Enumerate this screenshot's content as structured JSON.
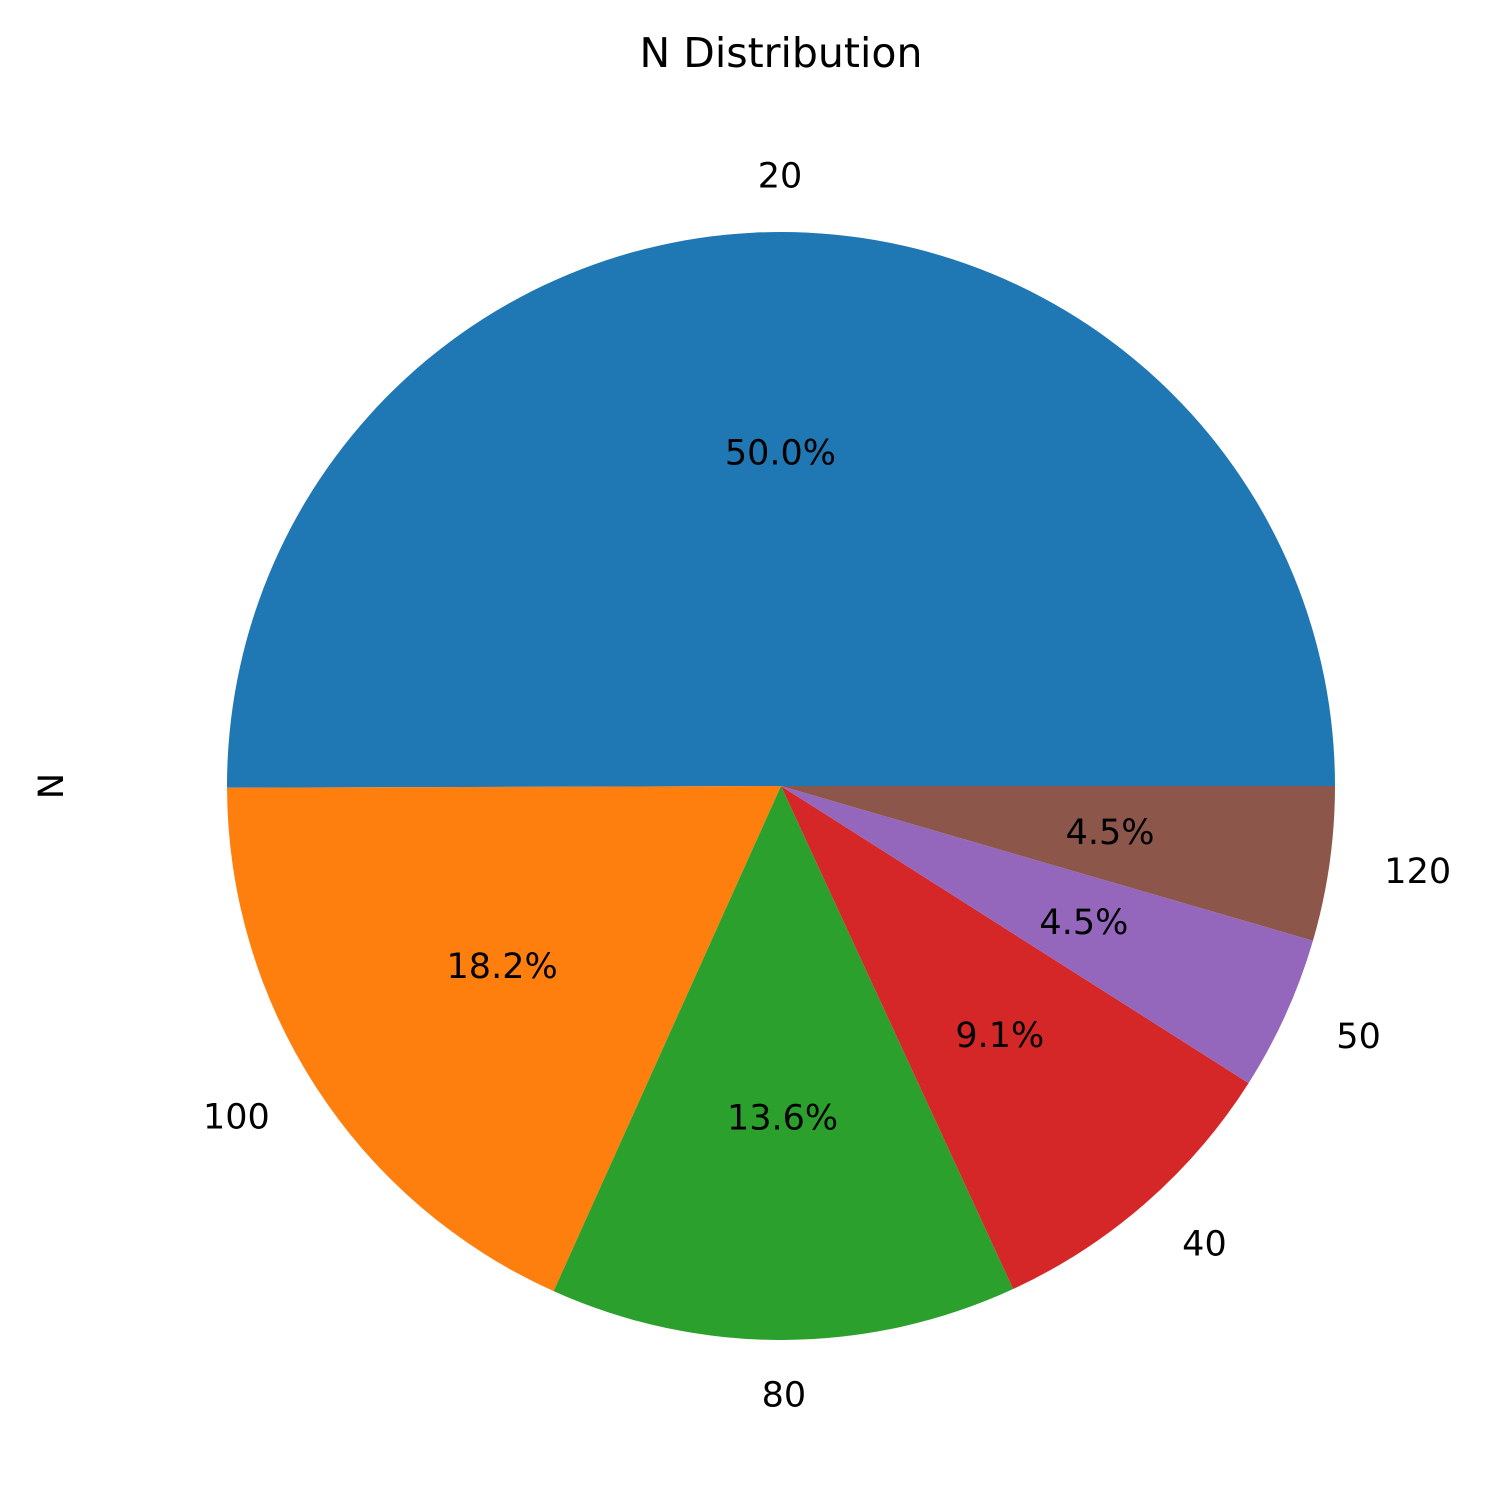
{
  "chart_data": {
    "type": "pie",
    "title": "N Distribution",
    "ylabel": "N",
    "start_angle_deg": 0,
    "direction": "counterclockwise",
    "slices": [
      {
        "label": "20",
        "value": 50.0,
        "pct_label": "50.0%",
        "color": "#1f77b4"
      },
      {
        "label": "100",
        "value": 18.2,
        "pct_label": "18.2%",
        "color": "#ff7f0e"
      },
      {
        "label": "80",
        "value": 13.6,
        "pct_label": "13.6%",
        "color": "#2ca02c"
      },
      {
        "label": "40",
        "value": 9.1,
        "pct_label": "9.1%",
        "color": "#d62728"
      },
      {
        "label": "50",
        "value": 4.5,
        "pct_label": "4.5%",
        "color": "#9467bd"
      },
      {
        "label": "120",
        "value": 4.5,
        "pct_label": "4.5%",
        "color": "#8c564b"
      }
    ]
  }
}
